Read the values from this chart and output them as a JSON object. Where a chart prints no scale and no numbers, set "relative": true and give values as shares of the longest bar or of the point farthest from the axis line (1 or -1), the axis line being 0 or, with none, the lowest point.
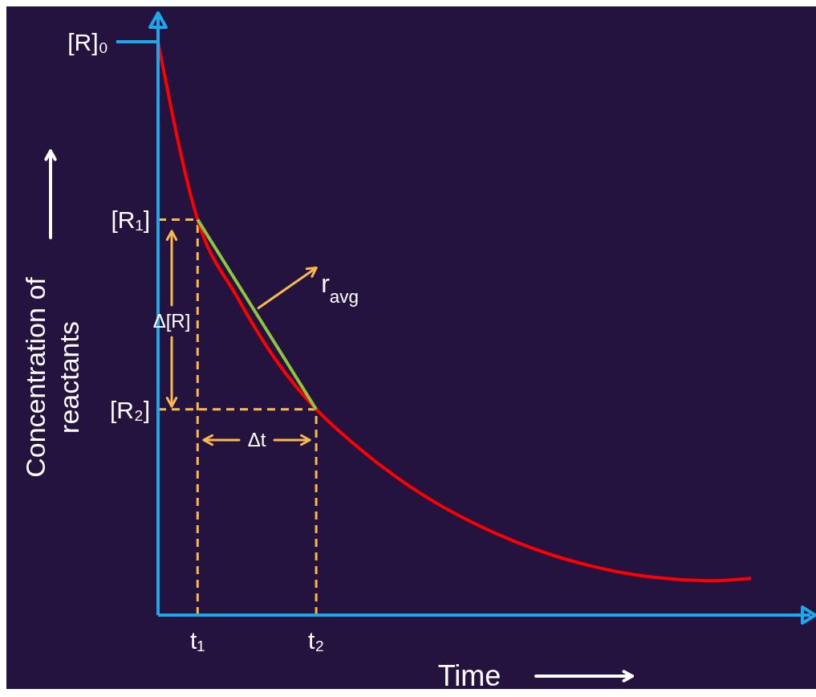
{
  "chart_data": {
    "type": "line",
    "relative": true,
    "xlabel": "Time",
    "ylabel": "Concentration of reactants",
    "marker": "none",
    "categories": [
      null,
      "t₁",
      null,
      null,
      "t₂",
      null,
      null,
      null,
      null,
      null,
      null,
      null,
      null,
      null,
      null,
      null
    ],
    "series": [
      {
        "color": "#ff0000",
        "values": [
          1.0,
          0.69,
          0.555,
          0.443,
          0.359,
          0.296,
          0.242,
          0.197,
          0.16,
          0.129,
          0.104,
          0.085,
          0.071,
          0.063,
          0.06,
          0.064
        ]
      },
      {
        "name": "r$_{avg}$",
        "color": "#8dc63f",
        "values": [
          null,
          0.69,
          null,
          null,
          0.359,
          null,
          null,
          null,
          null,
          null,
          null,
          null,
          null,
          null,
          null,
          null
        ]
      }
    ],
    "ref_lines": [
      {
        "axis": "y",
        "value": 1.0,
        "label": "[R]₀",
        "color": "#1ea7ea",
        "line_style": "solid"
      },
      {
        "axis": "y",
        "value": 0.69,
        "label": "[R₁]",
        "color": "#f9b94e",
        "line_style": "dashed"
      },
      {
        "axis": "y",
        "value": 0.359,
        "label": "[R₂]",
        "color": "#f9b94e",
        "line_style": "dashed"
      },
      {
        "axis": "x",
        "value": "t₁",
        "color": "#f9b94e",
        "line_style": "dashed"
      },
      {
        "axis": "x",
        "value": "t₂",
        "color": "#f9b94e",
        "line_style": "dashed"
      }
    ],
    "annotations": [
      "Δ[R]",
      "Δt"
    ]
  }
}
